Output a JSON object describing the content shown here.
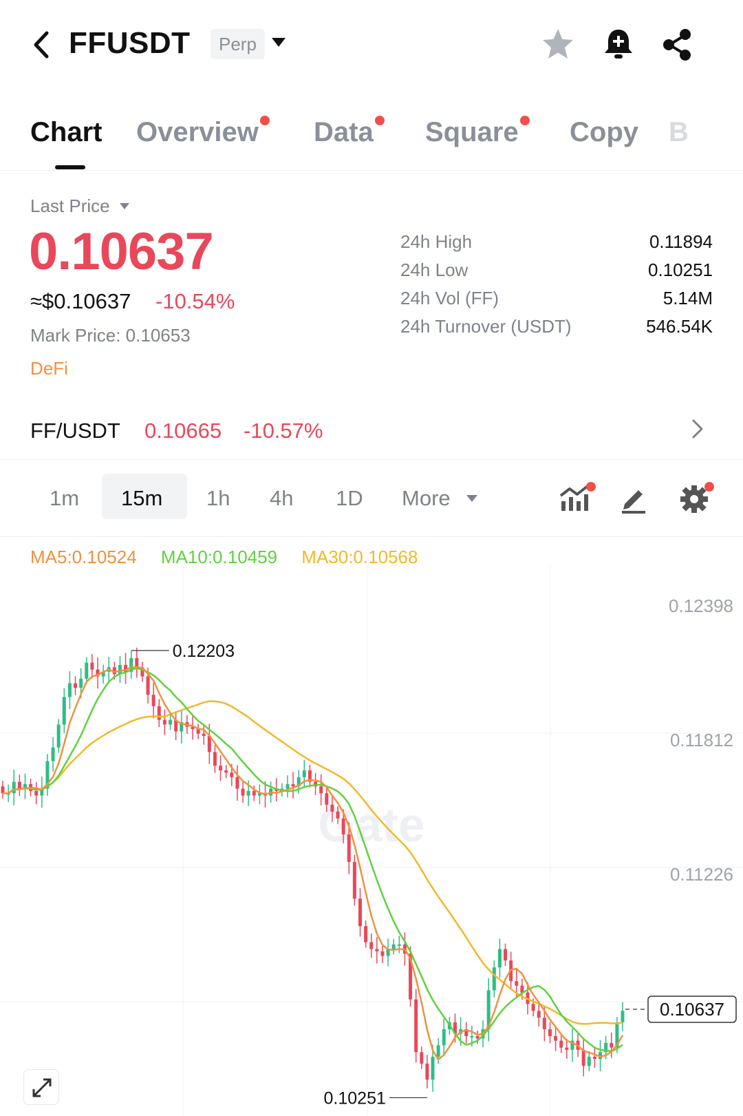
{
  "header": {
    "symbol": "FFUSDT",
    "contract_type": "Perp"
  },
  "tabs": [
    {
      "label": "Chart",
      "active": true,
      "dot": false
    },
    {
      "label": "Overview",
      "active": false,
      "dot": true
    },
    {
      "label": "Data",
      "active": false,
      "dot": true
    },
    {
      "label": "Square",
      "active": false,
      "dot": true
    },
    {
      "label": "Copy",
      "active": false,
      "dot": false
    },
    {
      "label": "B",
      "active": false,
      "dot": false
    }
  ],
  "price": {
    "label": "Last Price",
    "last": "0.10637",
    "usd": "≈$0.10637",
    "change": "-10.54%",
    "mark": "Mark Price:  0.10653",
    "tag": "DeFi"
  },
  "stats": [
    {
      "label": "24h High",
      "value": "0.11894"
    },
    {
      "label": "24h Low",
      "value": "0.10251"
    },
    {
      "label": "24h Vol (FF)",
      "value": "5.14M"
    },
    {
      "label": "24h Turnover (USDT)",
      "value": "546.54K"
    }
  ],
  "spot": {
    "pair": "FF/USDT",
    "price": "0.10665",
    "change": "-10.57%"
  },
  "timeframes": {
    "items": [
      "1m",
      "15m",
      "1h",
      "4h",
      "1D"
    ],
    "active": "15m",
    "more": "More"
  },
  "ma": {
    "ma5": "MA5:0.10524",
    "ma10": "MA10:0.10459",
    "ma30": "MA30:0.10568"
  },
  "colors": {
    "up": "#2fbd85",
    "down": "#e8485a",
    "ma5": "#f0913d",
    "ma10": "#5fd13f",
    "ma30": "#f1b82a",
    "accent_dot": "#f0504b"
  },
  "chart_data": {
    "type": "candlestick",
    "y_ticks": [
      "0.12398",
      "0.11812",
      "0.11226"
    ],
    "ylim": [
      0.1025,
      0.1255
    ],
    "high_label": "0.12203",
    "low_label": "0.10251",
    "last_label": "0.10637",
    "watermark": "Gate",
    "close_series": [
      0.1158,
      0.1158,
      0.1163,
      0.116,
      0.1162,
      0.1159,
      0.1157,
      0.116,
      0.1172,
      0.1178,
      0.1188,
      0.12,
      0.1206,
      0.1204,
      0.1208,
      0.1215,
      0.1212,
      0.1209,
      0.1211,
      0.1213,
      0.121,
      0.1214,
      0.1211,
      0.1217,
      0.1213,
      0.1209,
      0.1201,
      0.1196,
      0.119,
      0.1188,
      0.119,
      0.1185,
      0.1189,
      0.1187,
      0.1186,
      0.1184,
      0.1183,
      0.1176,
      0.117,
      0.1168,
      0.1167,
      0.1165,
      0.116,
      0.1157,
      0.1159,
      0.1157,
      0.1158,
      0.1157,
      0.116,
      0.1159,
      0.116,
      0.1162,
      0.1161,
      0.1165,
      0.1168,
      0.1163,
      0.1161,
      0.1158,
      0.1153,
      0.115,
      0.1147,
      0.114,
      0.1128,
      0.1112,
      0.11,
      0.1093,
      0.109,
      0.1089,
      0.1087,
      0.109,
      0.1092,
      0.1092,
      0.1088,
      0.1068,
      0.1045,
      0.104,
      0.1033,
      0.1043,
      0.1048,
      0.1055,
      0.1058,
      0.1053,
      0.1055,
      0.1052,
      0.1052,
      0.1051,
      0.1055,
      0.1072,
      0.1082,
      0.109,
      0.1085,
      0.1076,
      0.1074,
      0.1071,
      0.1066,
      0.1063,
      0.106,
      0.1055,
      0.1052,
      0.105,
      0.1047,
      0.1046,
      0.105,
      0.1046,
      0.1039,
      0.1043,
      0.1042,
      0.1045,
      0.1049,
      0.1047,
      0.1058,
      0.1063
    ]
  }
}
